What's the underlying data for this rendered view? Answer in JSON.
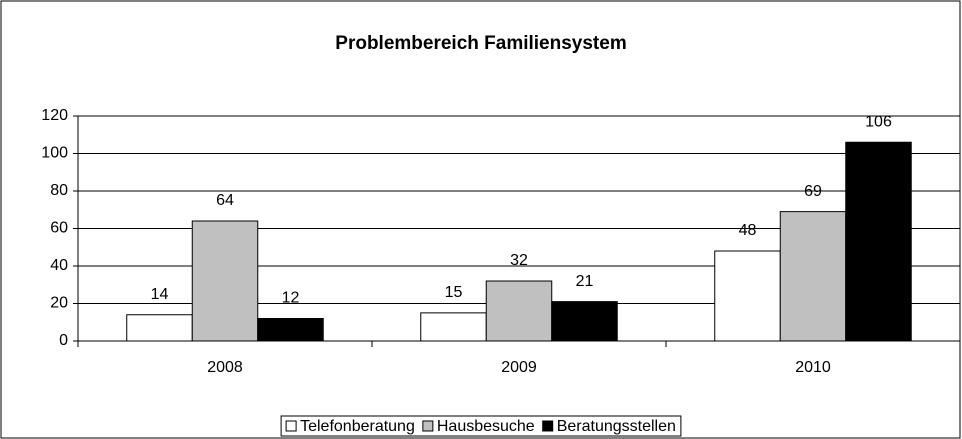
{
  "chart_data": {
    "type": "bar",
    "title": "Problembereich Familiensystem",
    "categories": [
      "2008",
      "2009",
      "2010"
    ],
    "series": [
      {
        "name": "Telefonberatung",
        "color": "#ffffff",
        "values": [
          14,
          15,
          48
        ]
      },
      {
        "name": "Hausbesuche",
        "color": "#c0c0c0",
        "values": [
          64,
          32,
          69
        ]
      },
      {
        "name": "Beratungsstellen",
        "color": "#000000",
        "values": [
          12,
          21,
          106
        ]
      }
    ],
    "ylim": [
      0,
      120
    ],
    "yticks": [
      0,
      20,
      40,
      60,
      80,
      100,
      120
    ],
    "grid": true,
    "legend": "bottom"
  }
}
